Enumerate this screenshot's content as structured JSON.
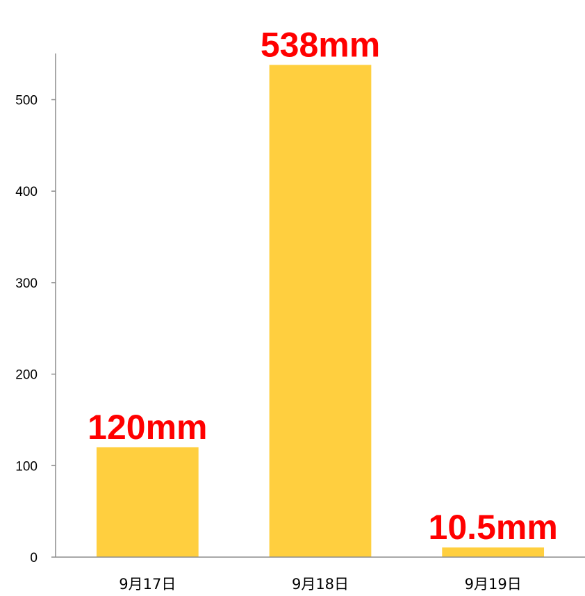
{
  "chart_data": {
    "type": "bar",
    "categories": [
      "9月17日",
      "9月18日",
      "9月19日"
    ],
    "values": [
      120,
      538,
      10.5
    ],
    "data_labels": [
      "120mm",
      "538mm",
      "10.5mm"
    ],
    "title": "",
    "xlabel": "",
    "ylabel": "",
    "ylim": [
      0,
      550
    ],
    "yticks": [
      0,
      100,
      200,
      300,
      400,
      500
    ],
    "grid": false,
    "legend": "none",
    "colors": {
      "bar": "#FFCF3F",
      "data_label": "#FF0000",
      "axis": "#8C8C8C"
    }
  }
}
